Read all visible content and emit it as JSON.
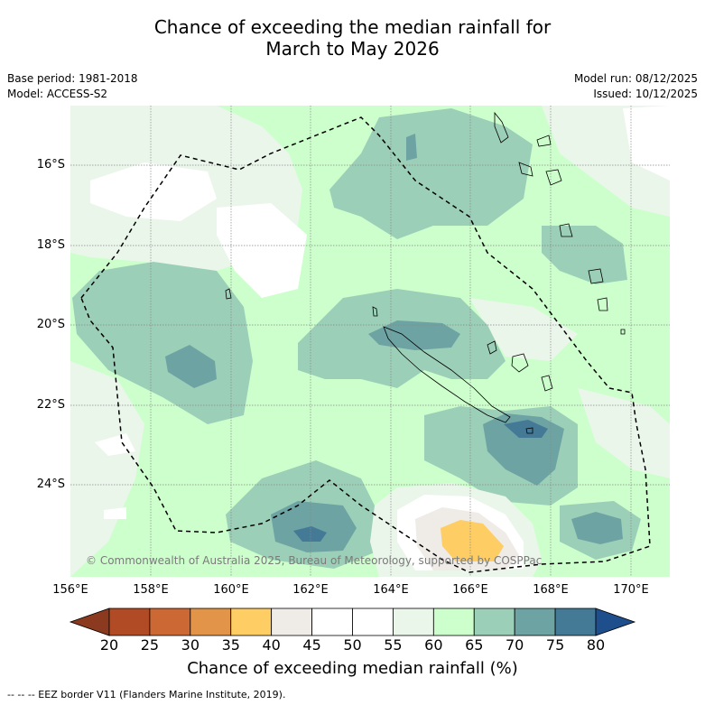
{
  "title": {
    "line1": "Chance of exceeding the median rainfall for",
    "line2": "March to May 2026"
  },
  "meta": {
    "base_period": "Base period: 1981-2018",
    "model": "Model: ACCESS-S2",
    "model_run": "Model run: 08/12/2025",
    "issued": "Issued: 10/12/2025"
  },
  "map": {
    "copyright": "© Commonwealth of Australia 2025, Bureau of Meteorology, supported by COSPPac",
    "lat_labels": [
      "16°S",
      "18°S",
      "20°S",
      "22°S",
      "24°S"
    ],
    "lon_labels": [
      "156°E",
      "158°E",
      "160°E",
      "162°E",
      "164°E",
      "166°E",
      "168°E",
      "170°E"
    ]
  },
  "colorbar": {
    "ticks": [
      "20",
      "25",
      "30",
      "35",
      "40",
      "45",
      "50",
      "55",
      "60",
      "65",
      "70",
      "75",
      "80"
    ],
    "colors": [
      "#8b3a1f",
      "#b14b25",
      "#cb6833",
      "#e29448",
      "#fecd64",
      "#efebe7",
      "#ffffff",
      "#ffffff",
      "#ebf6eb",
      "#ccffcc",
      "#9ccfb7",
      "#6da3a3",
      "#447a96",
      "#1f4e8c"
    ],
    "label": "Chance of exceeding median rainfall (%)"
  },
  "footnote": "--  --  -- EEZ border V11 (Flanders Marine Institute, 2019)."
}
